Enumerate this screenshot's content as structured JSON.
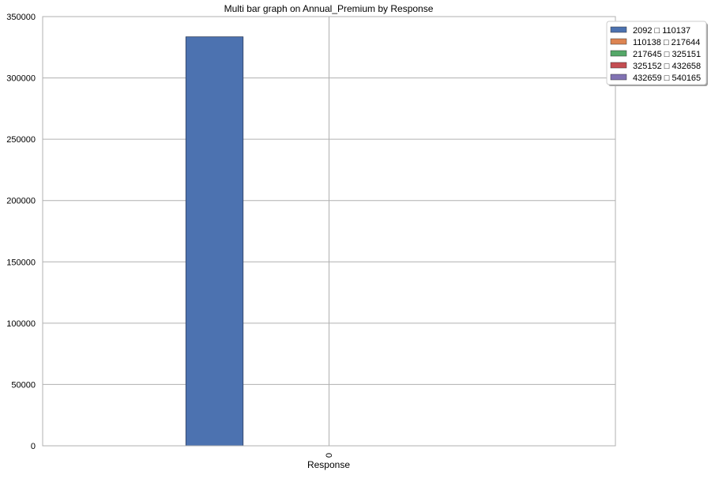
{
  "chart_data": {
    "type": "bar",
    "title": "Multi bar graph on Annual_Premium by Response",
    "xlabel": "Response",
    "ylabel": "",
    "categories": [
      "0"
    ],
    "ylim": [
      0,
      350000
    ],
    "yticks": [
      0,
      50000,
      100000,
      150000,
      200000,
      250000,
      300000,
      350000
    ],
    "grid": true,
    "legend_position": "top-right",
    "series": [
      {
        "name": "2092 □ 110137",
        "values": [
          333500
        ],
        "color": "#4c72b0"
      },
      {
        "name": "110138 □ 217644",
        "values": [
          0
        ],
        "color": "#dd8452"
      },
      {
        "name": "217645 □ 325151",
        "values": [
          0
        ],
        "color": "#55a868"
      },
      {
        "name": "325152 □ 432658",
        "values": [
          0
        ],
        "color": "#c44e52"
      },
      {
        "name": "432659 □ 540165",
        "values": [
          0
        ],
        "color": "#8172b3"
      }
    ]
  }
}
